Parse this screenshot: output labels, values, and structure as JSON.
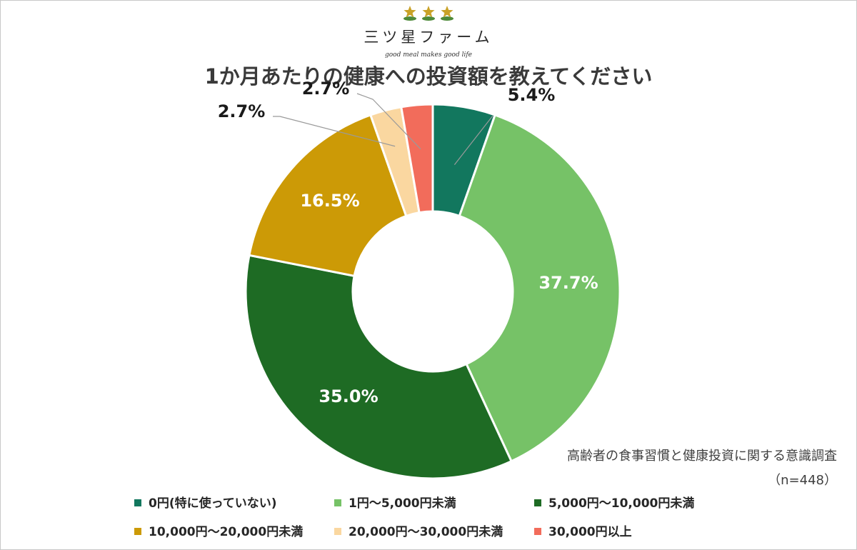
{
  "logo": {
    "icon": "three-gold-stars",
    "name": "三ツ星ファーム",
    "tagline": "good meal makes good life"
  },
  "source": {
    "line1": "高齢者の食事習慣と健康投資に関する意識調査",
    "line2": "（n=448）"
  },
  "colors": {
    "star": "#C9A227",
    "leaf": "#4E8A3A"
  },
  "chart_data": {
    "type": "pie",
    "donut": true,
    "title": "1か月あたりの健康への投資額を教えてください",
    "legend_position": "bottom",
    "categories": [
      "0円(特に使っていない)",
      "1円～5,000円未満",
      "5,000円～10,000円未満",
      "10,000円～20,000円未満",
      "20,000円～30,000円未満",
      "30,000円以上"
    ],
    "values": [
      5.4,
      37.7,
      35.0,
      16.5,
      2.7,
      2.7
    ],
    "labels": [
      "5.4%",
      "37.7%",
      "35.0%",
      "16.5%",
      "2.7%",
      "2.7%"
    ],
    "colors": [
      "#12775E",
      "#76C267",
      "#1E6B24",
      "#CC9A06",
      "#FAD7A0",
      "#F26C5B"
    ]
  }
}
